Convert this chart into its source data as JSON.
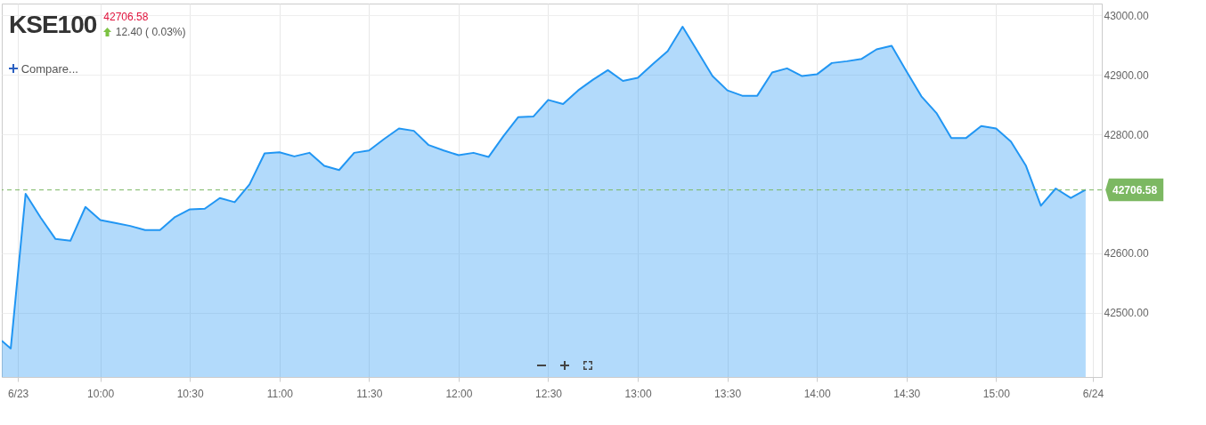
{
  "chart_data": {
    "type": "area",
    "title": "KSE100",
    "subtitle": "42706.58",
    "annotations": [
      "12.40 ( 0.03%)",
      "Compare..."
    ],
    "x": [
      9.45,
      9.5,
      9.583,
      9.667,
      9.75,
      9.833,
      9.917,
      10,
      10.083,
      10.167,
      10.25,
      10.333,
      10.417,
      10.5,
      10.583,
      10.667,
      10.75,
      10.833,
      10.917,
      11,
      11.083,
      11.167,
      11.25,
      11.333,
      11.417,
      11.5,
      11.583,
      11.667,
      11.75,
      11.833,
      11.917,
      12,
      12.083,
      12.167,
      12.25,
      12.333,
      12.417,
      12.5,
      12.583,
      12.667,
      12.75,
      12.833,
      12.917,
      13,
      13.083,
      13.167,
      13.25,
      13.333,
      13.417,
      13.5,
      13.583,
      13.667,
      13.75,
      13.833,
      13.917,
      14,
      14.083,
      14.167,
      14.25,
      14.333,
      14.417,
      14.5,
      14.583,
      14.667,
      14.75,
      14.833,
      14.917,
      15,
      15.083,
      15.167,
      15.25,
      15.333,
      15.417,
      15.5
    ],
    "series": [
      {
        "color": "#2196f3",
        "values": [
          42453,
          42440,
          42700,
          42660,
          42624,
          42621,
          42678,
          42656,
          42651,
          42646,
          42639,
          42639,
          42661,
          42674,
          42675,
          42693,
          42686,
          42716,
          42768,
          42770,
          42763,
          42769,
          42747,
          42740,
          42769,
          42773,
          42792,
          42810,
          42806,
          42782,
          42773,
          42765,
          42769,
          42762,
          42797,
          42829,
          42830,
          42858,
          42851,
          42874,
          42892,
          42908,
          42890,
          42895,
          42918,
          42940,
          42981,
          42940,
          42898,
          42874,
          42865,
          42865,
          42904,
          42911,
          42898,
          42901,
          42920,
          42923,
          42927,
          42943,
          42949,
          42906,
          42864,
          42836,
          42794,
          42794,
          42814,
          42810,
          42788,
          42747,
          42680,
          42709,
          42693,
          42707
        ]
      }
    ],
    "xlim": [
      9.45,
      15.59
    ],
    "xticks": [
      {
        "value": 9.54,
        "label": "6/23"
      },
      {
        "value": 10,
        "label": "10:00"
      },
      {
        "value": 10.5,
        "label": "10:30"
      },
      {
        "value": 11,
        "label": "11:00"
      },
      {
        "value": 11.5,
        "label": "11:30"
      },
      {
        "value": 12,
        "label": "12:00"
      },
      {
        "value": 12.5,
        "label": "12:30"
      },
      {
        "value": 13,
        "label": "13:00"
      },
      {
        "value": 13.5,
        "label": "13:30"
      },
      {
        "value": 14,
        "label": "14:00"
      },
      {
        "value": 14.5,
        "label": "14:30"
      },
      {
        "value": 15,
        "label": "15:00"
      },
      {
        "value": 15.54,
        "label": "6/24"
      }
    ],
    "ylim": [
      42392,
      43020
    ],
    "yticks": [
      {
        "value": 42500,
        "label": "42500.00"
      },
      {
        "value": 42600,
        "label": "42600.00"
      },
      {
        "value": 42800,
        "label": "42800.00"
      },
      {
        "value": 42900,
        "label": "42900.00"
      },
      {
        "value": 43000,
        "label": "43000.00"
      }
    ],
    "ref_lines": [
      {
        "axis": "y",
        "value": 42706.58,
        "label": "42706.58",
        "color": "#7cb862",
        "line_style": "dashed"
      }
    ],
    "grid": true
  }
}
